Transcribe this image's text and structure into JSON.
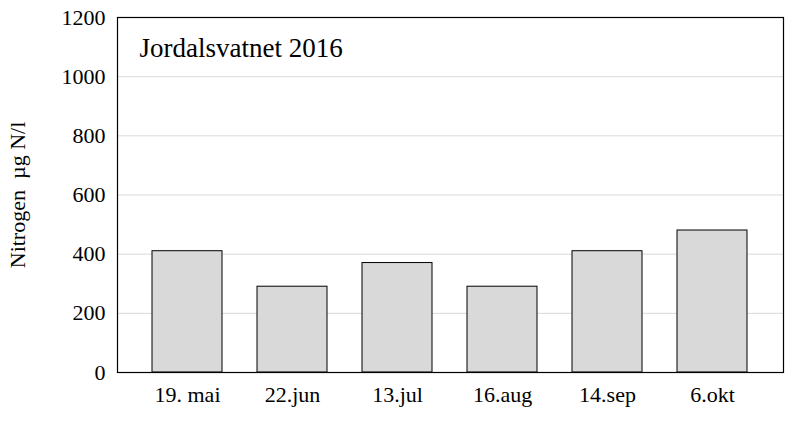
{
  "chart_data": {
    "type": "bar",
    "title": "Jordalsvatnet 2016",
    "y_label": "Nitrogen  µg N/l",
    "categories": [
      "19. mai",
      "22.jun",
      "13.jul",
      "16.aug",
      "14.sep",
      "6.okt"
    ],
    "values": [
      410,
      290,
      370,
      290,
      410,
      480
    ],
    "color": "#d9d9d9",
    "ylim": [
      0,
      1200
    ],
    "yticks": [
      0,
      200,
      400,
      600,
      800,
      1000,
      1200
    ],
    "grid": true
  }
}
